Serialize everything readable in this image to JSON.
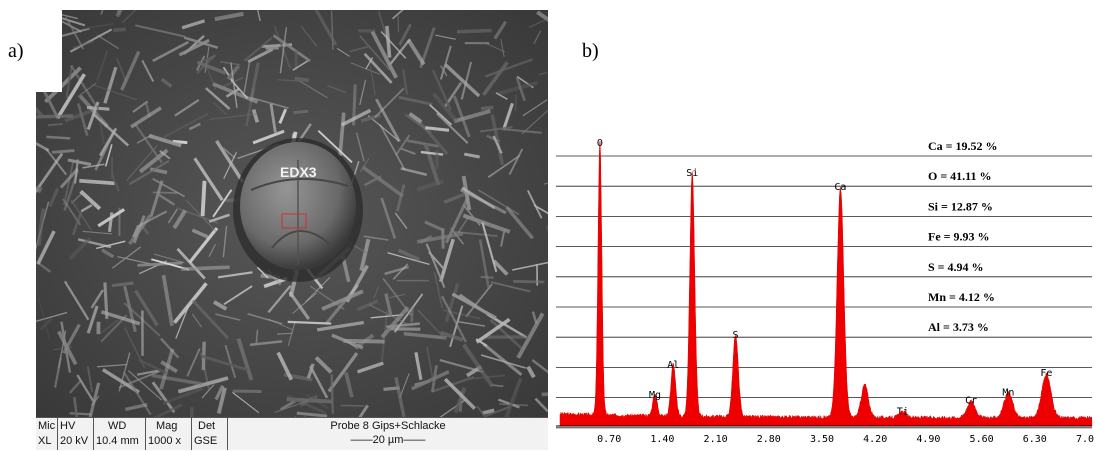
{
  "panels": {
    "a": "a)",
    "b": "b)"
  },
  "micrograph": {
    "marker_label": "EDX3",
    "info_bar": {
      "headers": [
        "Mic",
        "HV",
        "WD",
        "Mag",
        "Det"
      ],
      "values": [
        "XL",
        "20 kV",
        "10.4 mm",
        "1000 x",
        "GSE"
      ],
      "sample": "Probe 8 Gips+Schlacke",
      "scale": "——20 µm——"
    }
  },
  "chart_data": {
    "type": "area",
    "xlim": [
      0,
      7.0
    ],
    "ylim": [
      0,
      100
    ],
    "x_ticks": [
      "0.70",
      "1.40",
      "2.10",
      "2.80",
      "3.50",
      "4.20",
      "4.90",
      "5.60",
      "6.30",
      "7.00"
    ],
    "x_tick_values": [
      0.7,
      1.4,
      2.1,
      2.8,
      3.5,
      4.2,
      4.9,
      5.6,
      6.3,
      7.0
    ],
    "series_color": "#ee0000",
    "peaks": [
      {
        "label": "O",
        "x": 0.525,
        "y": 100
      },
      {
        "label": "Mg",
        "x": 1.25,
        "y": 8
      },
      {
        "label": "Al",
        "x": 1.49,
        "y": 19
      },
      {
        "label": "Si",
        "x": 1.74,
        "y": 89
      },
      {
        "label": "S",
        "x": 2.31,
        "y": 30
      },
      {
        "label": "Ca",
        "x": 3.69,
        "y": 84
      },
      {
        "label": "",
        "x": 4.01,
        "y": 12
      },
      {
        "label": "Ti",
        "x": 4.51,
        "y": 2
      },
      {
        "label": "Cr",
        "x": 5.41,
        "y": 6
      },
      {
        "label": "Mn",
        "x": 5.9,
        "y": 9
      },
      {
        "label": "Fe",
        "x": 6.4,
        "y": 16
      }
    ],
    "composition": [
      "Ca = 19.52 %",
      "O = 41.11 %",
      "Si = 12.87 %",
      "Fe = 9.93 %",
      "S = 4.94 %",
      "Mn = 4.12 %",
      "Al = 3.73 %"
    ]
  }
}
